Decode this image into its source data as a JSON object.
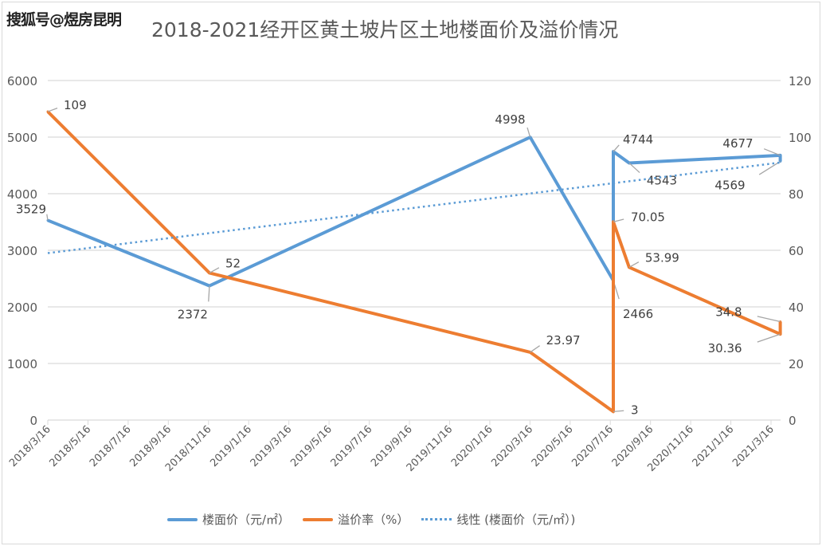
{
  "watermark": "搜狐号@煜房昆明",
  "chart_data": {
    "type": "line",
    "title": "2018-2021经开区黄土坡片区土地楼面价及溢价情况",
    "x_tick_labels": [
      "2018/3/16",
      "2018/5/16",
      "2018/7/16",
      "2018/9/16",
      "2018/11/16",
      "2019/1/16",
      "2019/3/16",
      "2019/5/16",
      "2019/7/16",
      "2019/9/16",
      "2019/11/16",
      "2020/1/16",
      "2020/3/16",
      "2020/5/16",
      "2020/7/16",
      "2020/9/16",
      "2020/11/16",
      "2021/1/16",
      "2021/3/16"
    ],
    "y_left": {
      "lim": [
        0,
        6000
      ],
      "ticks": [
        "0",
        "1000",
        "2000",
        "3000",
        "4000",
        "5000",
        "6000"
      ]
    },
    "y_right": {
      "lim": [
        0,
        120
      ],
      "ticks": [
        "0",
        "20",
        "40",
        "60",
        "80",
        "100",
        "120"
      ]
    },
    "grid": true,
    "legend_position": "bottom",
    "series": [
      {
        "name": "楼面价（元/㎡）",
        "axis": "left",
        "color": "#5b9bd5",
        "style": "solid",
        "points": [
          [
            "2018-03-16",
            3529
          ],
          [
            "2018-11-16",
            2372
          ],
          [
            "2020-03-16",
            4998
          ],
          [
            "2020-07-20",
            2466
          ],
          [
            "2020-07-20",
            4744
          ],
          [
            "2020-08-13",
            4543
          ],
          [
            "2021-03-30",
            4677
          ],
          [
            "2021-03-30",
            4569
          ]
        ]
      },
      {
        "name": "溢价率（%）",
        "axis": "right",
        "color": "#ed7d31",
        "style": "solid",
        "points": [
          [
            "2018-03-16",
            109
          ],
          [
            "2018-11-16",
            52
          ],
          [
            "2020-03-16",
            23.97
          ],
          [
            "2020-07-20",
            3
          ],
          [
            "2020-07-20",
            70.05
          ],
          [
            "2020-08-13",
            53.99
          ],
          [
            "2021-03-30",
            30.36
          ],
          [
            "2021-03-30",
            34.8
          ]
        ]
      },
      {
        "name": "线性 (楼面价（元/㎡）)",
        "axis": "left",
        "color": "#5b9bd5",
        "style": "dotted",
        "type": "trendline",
        "points": [
          [
            "2018-03-16",
            2950
          ],
          [
            "2021-03-30",
            4550
          ]
        ]
      }
    ]
  }
}
